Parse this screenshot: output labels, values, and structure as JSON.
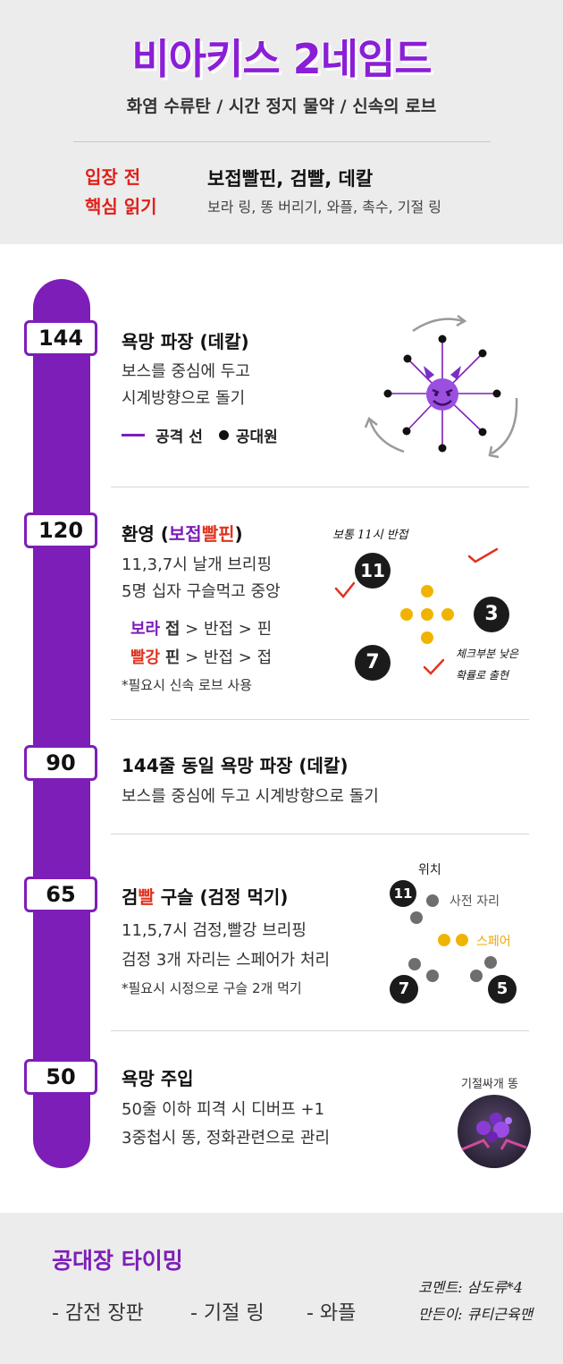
{
  "header": {
    "title": "비아키스 2네임드",
    "subtitle": "화염 수류탄 / 시간 정지 물약 / 신속의 로브",
    "entry_label_1": "입장 전",
    "entry_label_2": "핵심 읽기",
    "core_title": "보접빨핀, 검빨, 데칼",
    "core_sub": "보라 링, 똥 버리기, 와플, 촉수, 기절 링"
  },
  "phases": {
    "p144": {
      "hp": "144",
      "title": "욕망 파장 (데칼)",
      "line1": "보스를 중심에 두고",
      "line2": "시계방향으로 돌기",
      "legend_line": "공격 선",
      "legend_dot": "공대원",
      "boss_icon": "devil-emoji"
    },
    "p120": {
      "hp": "120",
      "title_pre": "환영 (",
      "title_a": "보접",
      "title_b": "빨핀",
      "title_post": ")",
      "line1": "11,3,7시 날개 브리핑",
      "line2": "5명 십자 구슬먹고 중앙",
      "row1_color": "보라",
      "row1_a": "접",
      "row1_rest": " > 반접 > 핀",
      "row2_color": "빨강",
      "row2_a": "핀",
      "row2_rest": " > 반접 > 접",
      "note": "*필요시 신속 로브 사용",
      "hand1": "보통 11시 반접",
      "hand2a": "체크부분 낮은",
      "hand2b": "확률로 출현",
      "n11": "11",
      "n3": "3",
      "n7": "7"
    },
    "p90": {
      "hp": "90",
      "title": "144줄 동일 욕망 파장 (데칼)",
      "line1": "보스를 중심에 두고 시계방향으로 돌기"
    },
    "p65": {
      "hp": "65",
      "title_a": "검",
      "title_b": "빨",
      "title_c": " 구슬 (검정 먹기)",
      "line1": "11,5,7시 검정,빨강 브리핑",
      "line2": "검정 3개 자리는 스페어가 처리",
      "note": "*필요시 시정으로 구슬 2개 먹기",
      "pos_label": "위치",
      "seat_label": "사전 자리",
      "spare_label": "스페어",
      "n11": "11",
      "n7": "7",
      "n5": "5"
    },
    "p50": {
      "hp": "50",
      "title": "욕망 주입",
      "line1": "50줄 이하 피격 시 디버프 +1",
      "line2": "3중첩시 똥, 정화관련으로 관리",
      "img_label": "기절싸개 똥"
    }
  },
  "footer": {
    "title": "공대장 타이밍",
    "items": [
      "- 감전 장판",
      "- 기절 링",
      "- 와플"
    ],
    "credit1": "코멘트: 삼도류*4",
    "credit2": "만든이: 큐티근육맨"
  },
  "colors": {
    "purple": "#7d1eb8",
    "title_purple": "#8a1fd6",
    "red": "#e0331f",
    "orb_yellow": "#f0b400",
    "orb_gray": "#6e6e6e",
    "panel_gray": "#ececec"
  }
}
